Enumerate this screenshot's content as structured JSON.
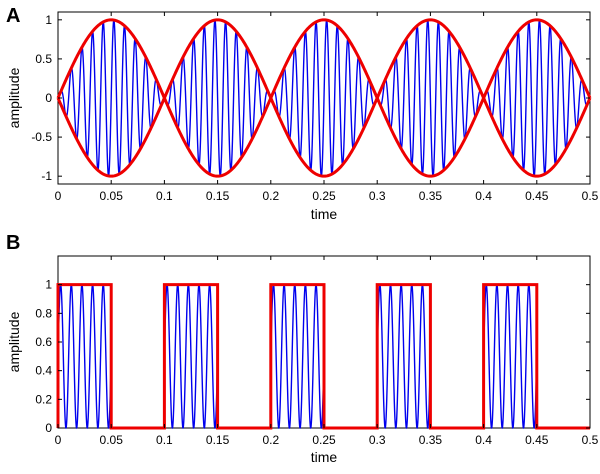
{
  "chart_data": [
    {
      "panel_label": "A",
      "type": "line",
      "xlabel": "time",
      "ylabel": "amplitude",
      "xlim": [
        0,
        0.5
      ],
      "ylim": [
        -1.1,
        1.1
      ],
      "xticks": [
        0,
        0.05,
        0.1,
        0.15,
        0.2,
        0.25,
        0.3,
        0.35,
        0.4,
        0.45,
        0.5
      ],
      "xtick_labels": [
        "0",
        "0.05",
        "0.1",
        "0.15",
        "0.2",
        "0.25",
        "0.3",
        "0.35",
        "0.4",
        "0.45",
        "0.5"
      ],
      "yticks": [
        -1,
        -0.5,
        0,
        0.5,
        1
      ],
      "ytick_labels": [
        "-1",
        "-0.5",
        "0",
        "0.5",
        "1"
      ],
      "series": [
        {
          "kind": "carrier",
          "color": "#0000ee",
          "envelope_frequency_hz": 5,
          "carrier_frequency_hz": 100,
          "x_range": [
            0,
            0.5
          ]
        },
        {
          "kind": "envelope",
          "color": "#ee0000",
          "frequency_hz": 5,
          "amplitude": 1,
          "x_range": [
            0,
            0.5
          ]
        }
      ]
    },
    {
      "panel_label": "B",
      "type": "line",
      "xlabel": "time",
      "ylabel": "amplitude",
      "xlim": [
        0,
        0.5
      ],
      "ylim": [
        0,
        1.2
      ],
      "xticks": [
        0,
        0.05,
        0.1,
        0.15,
        0.2,
        0.25,
        0.3,
        0.35,
        0.4,
        0.45,
        0.5
      ],
      "xtick_labels": [
        "0",
        "0.05",
        "0.1",
        "0.15",
        "0.2",
        "0.25",
        "0.3",
        "0.35",
        "0.4",
        "0.45",
        "0.5"
      ],
      "yticks": [
        0,
        0.2,
        0.4,
        0.6,
        0.8,
        1
      ],
      "ytick_labels": [
        "0",
        "0.2",
        "0.4",
        "0.6",
        "0.8",
        "1"
      ],
      "series": [
        {
          "kind": "carrier",
          "color": "#0000ee",
          "carrier_frequency_hz": 100,
          "baseline": 0.5,
          "amplitude": 0.5,
          "on_intervals": [
            [
              0,
              0.05
            ],
            [
              0.1,
              0.15
            ],
            [
              0.2,
              0.25
            ],
            [
              0.3,
              0.35
            ],
            [
              0.4,
              0.45
            ]
          ]
        },
        {
          "kind": "envelope",
          "color": "#ee0000",
          "shape": "square",
          "high": 1,
          "low": 0,
          "on_intervals": [
            [
              0,
              0.05
            ],
            [
              0.1,
              0.15
            ],
            [
              0.2,
              0.25
            ],
            [
              0.3,
              0.35
            ],
            [
              0.4,
              0.45
            ]
          ],
          "x_range": [
            0,
            0.5
          ]
        }
      ]
    }
  ]
}
